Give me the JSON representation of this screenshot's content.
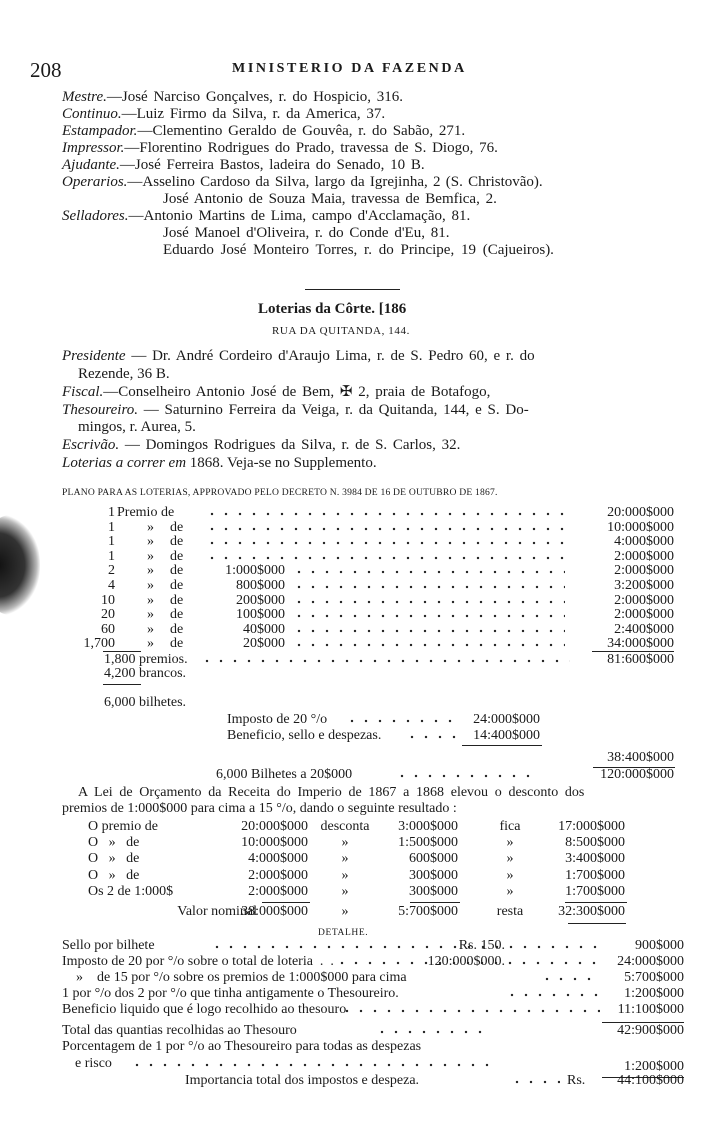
{
  "header": {
    "page_number": "208",
    "running_title": "MINISTERIO DA FAZENDA"
  },
  "staff": [
    {
      "role": "Mestre.",
      "text": "—José Narciso Gonçalves, r. do Hospicio, 316."
    },
    {
      "role": "Continuo.",
      "text": "—Luiz Firmo da Silva, r. da America, 37."
    },
    {
      "role": "Estampador.",
      "text": "—Clementino Geraldo de Gouvêa, r. do Sabão, 271."
    },
    {
      "role": "Impressor.",
      "text": "—Florentino Rodrigues do Prado, travessa de S. Diogo, 76."
    },
    {
      "role": "Ajudante.",
      "text": "—José Ferreira Bastos, ladeira do Senado, 10 B."
    },
    {
      "role": "Operarios.",
      "text": "—Asselino Cardoso da Silva, largo da Igrejinha, 2 (S. Christovão)."
    },
    {
      "role": "",
      "text": "José Antonio de Souza Maia, travessa de Bemfica, 2."
    },
    {
      "role": "Selladores.",
      "text": "—Antonio Martins de Lima, campo d'Acclamação, 81."
    },
    {
      "role": "",
      "text": "José Manoel d'Oliveira, r. do Conde d'Eu, 81."
    },
    {
      "role": "",
      "text": "Eduardo José Monteiro Torres, r. do Principe, 19 (Cajueiros)."
    }
  ],
  "lottery": {
    "title": "Loterias da Côrte. [186",
    "address": "RUA DA QUITANDA, 144.",
    "officers": [
      {
        "role": "Presidente",
        "text": " — Dr. André Cordeiro d'Araujo Lima, r. de S. Pedro 60, e r. do",
        "cont": "Rezende, 36 B."
      },
      {
        "role": "Fiscal.",
        "text": "—Conselheiro Antonio José de Bem, ✠ 2, praia de Botafogo,",
        "cont": ""
      },
      {
        "role": "Thesoureiro.",
        "text": " — Saturnino Ferreira da Veiga, r. da Quitanda, 144, e S. Do-",
        "cont": "mingos, r. Aurea, 5."
      },
      {
        "role": "Escrivão.",
        "text": " — Domingos Rodrigues da Silva, r. de S. Carlos, 32.",
        "cont": ""
      }
    ],
    "schedule_label": "Loterias a correr em",
    "schedule_text": " 1868. Veja-se no Supplemento."
  },
  "plan": {
    "heading": "PLANO PARA AS LOTERIAS, APPROVADO PELO DECRETO N. 3984 DE 16 DE OUTUBRO DE 1867.",
    "prizes": [
      {
        "qty": "1",
        "label": "Premio de",
        "amount": "",
        "total": "20:000$000"
      },
      {
        "qty": "1",
        "ditto": "»",
        "label": "de",
        "amount": "",
        "total": "10:000$000"
      },
      {
        "qty": "1",
        "ditto": "»",
        "label": "de",
        "amount": "",
        "total": "4:000$000"
      },
      {
        "qty": "1",
        "ditto": "»",
        "label": "de",
        "amount": "",
        "total": "2:000$000"
      },
      {
        "qty": "2",
        "ditto": "»",
        "label": "de",
        "amount": "1:000$000",
        "total": "2:000$000"
      },
      {
        "qty": "4",
        "ditto": "»",
        "label": "de",
        "amount": "800$000",
        "total": "3:200$000"
      },
      {
        "qty": "10",
        "ditto": "»",
        "label": "de",
        "amount": "200$000",
        "total": "2:000$000"
      },
      {
        "qty": "20",
        "ditto": "»",
        "label": "de",
        "amount": "100$000",
        "total": "2:000$000"
      },
      {
        "qty": "60",
        "ditto": "»",
        "label": "de",
        "amount": "40$000",
        "total": "2:400$000"
      },
      {
        "qty": "1,700",
        "ditto": "»",
        "label": "de",
        "amount": "20$000",
        "total": "34:000$000"
      }
    ],
    "prizes_count": "1,800 premios.",
    "prizes_total": "81:600$000",
    "blanks": "4,200 brancos.",
    "tickets": "6,000 bilhetes.",
    "tax_label": "Imposto de 20 °/o",
    "tax_value": "24:000$000",
    "benefit_label": "Beneficio, sello e despezas.",
    "benefit_value": "14:400$000",
    "deductions_total": "38:400$000",
    "gross_label": "6,000 Bilhetes a 20$000",
    "gross_value": "120:000$000"
  },
  "law": {
    "line1": "A Lei de Orçamento da Receita do Imperio de 1867 a 1868 elevou o desconto dos",
    "line2": "premios de 1:000$000 para cima a 15 °/o, dando o seguinte resultado :",
    "rows": [
      {
        "label": "O premio de",
        "amount": "20:000$000",
        "op": "desconta",
        "discount": "3:000$000",
        "op2": "fica",
        "result": "17:000$000"
      },
      {
        "label": "O   »   de",
        "amount": "10:000$000",
        "op": "»",
        "discount": "1:500$000",
        "op2": "»",
        "result": "8:500$000"
      },
      {
        "label": "O   »   de",
        "amount": "4:000$000",
        "op": "»",
        "discount": "600$000",
        "op2": "»",
        "result": "3:400$000"
      },
      {
        "label": "O   »   de",
        "amount": "2:000$000",
        "op": "»",
        "discount": "300$000",
        "op2": "»",
        "result": "1:700$000"
      },
      {
        "label": "Os 2 de 1:000$",
        "amount": "2:000$000",
        "op": "»",
        "discount": "300$000",
        "op2": "»",
        "result": "1:700$000"
      }
    ],
    "nominal": {
      "label": "Valor nominal",
      "amount": "38:000$000",
      "op": "»",
      "discount": "5:700$000",
      "op2": "resta",
      "result": "32:300$000"
    }
  },
  "detail": {
    "heading": "DETALHE.",
    "rows": [
      {
        "label": "Sello por bilhete",
        "mid": "Rs.  150.",
        "value": "900$000"
      },
      {
        "label": "Imposto de 20 por °/o sobre o total de loteria  .  .",
        "mid": "120:000$000.",
        "value": "24:000$000"
      },
      {
        "label": "    »    de 15 por °/o sobre os premios de 1:000$000 para cima",
        "mid": "",
        "value": "5:700$000"
      },
      {
        "label": "1 por °/o dos 2 por °/o que tinha antigamente o Thesoureiro.",
        "mid": "",
        "value": "1:200$000"
      },
      {
        "label": "Beneficio liquido que é logo recolhido ao thesouro",
        "mid": "",
        "value": "11:100$000"
      }
    ],
    "total_label": "Total das quantias recolhidas ao Thesouro",
    "total_value": "42:900$000",
    "commission_line1": "Porcentagem de 1 por °/o ao Thesoureiro para todas as despezas",
    "commission_line2": "e risco",
    "commission_value": "1:200$000",
    "grand_label": "Importancia total dos impostos e despeza.",
    "grand_currency": "Rs.",
    "grand_value": "44:100$000"
  }
}
